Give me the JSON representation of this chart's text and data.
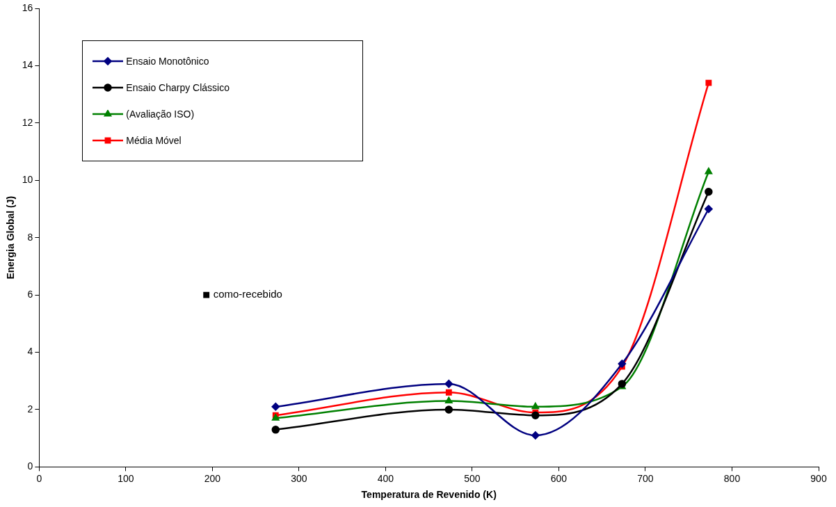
{
  "chart_data": {
    "type": "line",
    "xlabel": "Temperatura de Revenido (K)",
    "ylabel": "Energia Global (J)",
    "xlim": [
      0,
      900
    ],
    "xticks": [
      0,
      100,
      200,
      300,
      400,
      500,
      600,
      700,
      800,
      900
    ],
    "ylim": [
      0,
      16
    ],
    "yticks": [
      0,
      2,
      4,
      6,
      8,
      10,
      12,
      14,
      16
    ],
    "grid": false,
    "legend": "top left",
    "series": [
      {
        "name": "Ensaio Monotônico",
        "color": "#000080",
        "marker": "diamond",
        "x": [
          273,
          473,
          573,
          673,
          773
        ],
        "values": [
          2.1,
          2.9,
          1.1,
          3.6,
          9.0
        ]
      },
      {
        "name": "Ensaio Charpy Clássico",
        "color": "#000000",
        "marker": "circle",
        "x": [
          273,
          473,
          573,
          673,
          773
        ],
        "values": [
          1.3,
          2.0,
          1.8,
          2.9,
          9.6
        ]
      },
      {
        "name": "(Avaliação ISO)",
        "color": "#008000",
        "marker": "triangle",
        "x": [
          273,
          473,
          573,
          673,
          773
        ],
        "values": [
          1.7,
          2.3,
          2.1,
          2.8,
          10.3
        ]
      },
      {
        "name": "Média Móvel",
        "color": "#ff0000",
        "marker": "square",
        "x": [
          273,
          473,
          573,
          673,
          773
        ],
        "values": [
          1.8,
          2.6,
          1.9,
          3.5,
          13.4
        ]
      },
      {
        "name": "como-recebido",
        "type": "scatter",
        "color": "#000000",
        "marker": "square",
        "x": [
          193
        ],
        "values": [
          6
        ]
      }
    ]
  }
}
